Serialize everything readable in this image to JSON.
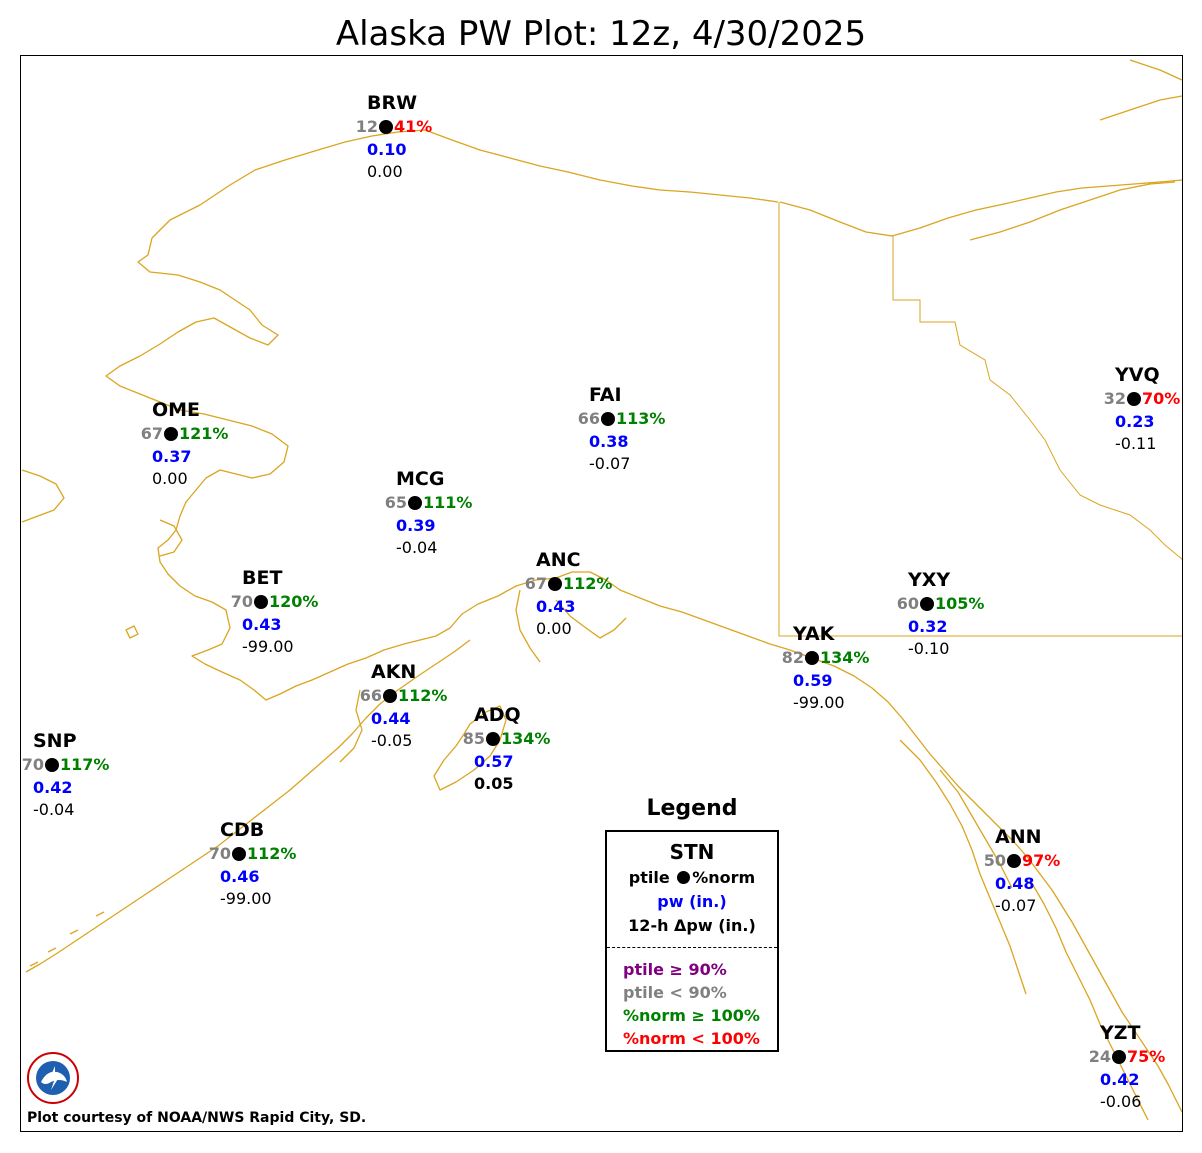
{
  "title": "Alaska PW Plot: 12z, 4/30/2025",
  "stations": [
    {
      "id": "BRW",
      "ptile": "12",
      "pct": "41%",
      "pct_class": "red",
      "pw": "0.10",
      "dpw": "0.00"
    },
    {
      "id": "OME",
      "ptile": "67",
      "pct": "121%",
      "pct_class": "green",
      "pw": "0.37",
      "dpw": "0.00"
    },
    {
      "id": "FAI",
      "ptile": "66",
      "pct": "113%",
      "pct_class": "green",
      "pw": "0.38",
      "dpw": "-0.07"
    },
    {
      "id": "MCG",
      "ptile": "65",
      "pct": "111%",
      "pct_class": "green",
      "pw": "0.39",
      "dpw": "-0.04"
    },
    {
      "id": "BET",
      "ptile": "70",
      "pct": "120%",
      "pct_class": "green",
      "pw": "0.43",
      "dpw": "-99.00"
    },
    {
      "id": "ANC",
      "ptile": "67",
      "pct": "112%",
      "pct_class": "green",
      "pw": "0.43",
      "dpw": "0.00"
    },
    {
      "id": "AKN",
      "ptile": "66",
      "pct": "112%",
      "pct_class": "green",
      "pw": "0.44",
      "dpw": "-0.05"
    },
    {
      "id": "ADQ",
      "ptile": "85",
      "pct": "134%",
      "pct_class": "green",
      "pw": "0.57",
      "dpw": "0.05"
    },
    {
      "id": "SNP",
      "ptile": "70",
      "pct": "117%",
      "pct_class": "green",
      "pw": "0.42",
      "dpw": "-0.04"
    },
    {
      "id": "CDB",
      "ptile": "70",
      "pct": "112%",
      "pct_class": "green",
      "pw": "0.46",
      "dpw": "-99.00"
    },
    {
      "id": "YAK",
      "ptile": "82",
      "pct": "134%",
      "pct_class": "green",
      "pw": "0.59",
      "dpw": "-99.00"
    },
    {
      "id": "YXY",
      "ptile": "60",
      "pct": "105%",
      "pct_class": "green",
      "pw": "0.32",
      "dpw": "-0.10"
    },
    {
      "id": "YVQ",
      "ptile": "32",
      "pct": "70%",
      "pct_class": "red",
      "pw": "0.23",
      "dpw": "-0.11"
    },
    {
      "id": "ANN",
      "ptile": "50",
      "pct": "97%",
      "pct_class": "red",
      "pw": "0.48",
      "dpw": "-0.07"
    },
    {
      "id": "YZT",
      "ptile": "24",
      "pct": "75%",
      "pct_class": "red",
      "pw": "0.42",
      "dpw": "-0.06"
    }
  ],
  "legend": {
    "title": "Legend",
    "stn": "STN",
    "row1_left": "ptile",
    "row1_right": "%norm",
    "row2": "pw (in.)",
    "row3": "12-h Δpw (in.)",
    "key_ptile_high": "ptile ≥ 90%",
    "key_ptile_low": "ptile < 90%",
    "key_norm_high": "%norm ≥ 100%",
    "key_norm_low": "%norm < 100%"
  },
  "colors": {
    "coastline": "#DAA520",
    "ptile_high": "#800080",
    "ptile_low": "#808080",
    "norm_high": "#008000",
    "norm_low": "#FF0000",
    "pw": "#0000FF"
  },
  "logo_icon": "nws-logo-icon",
  "credit": "Plot courtesy of NOAA/NWS Rapid City, SD."
}
